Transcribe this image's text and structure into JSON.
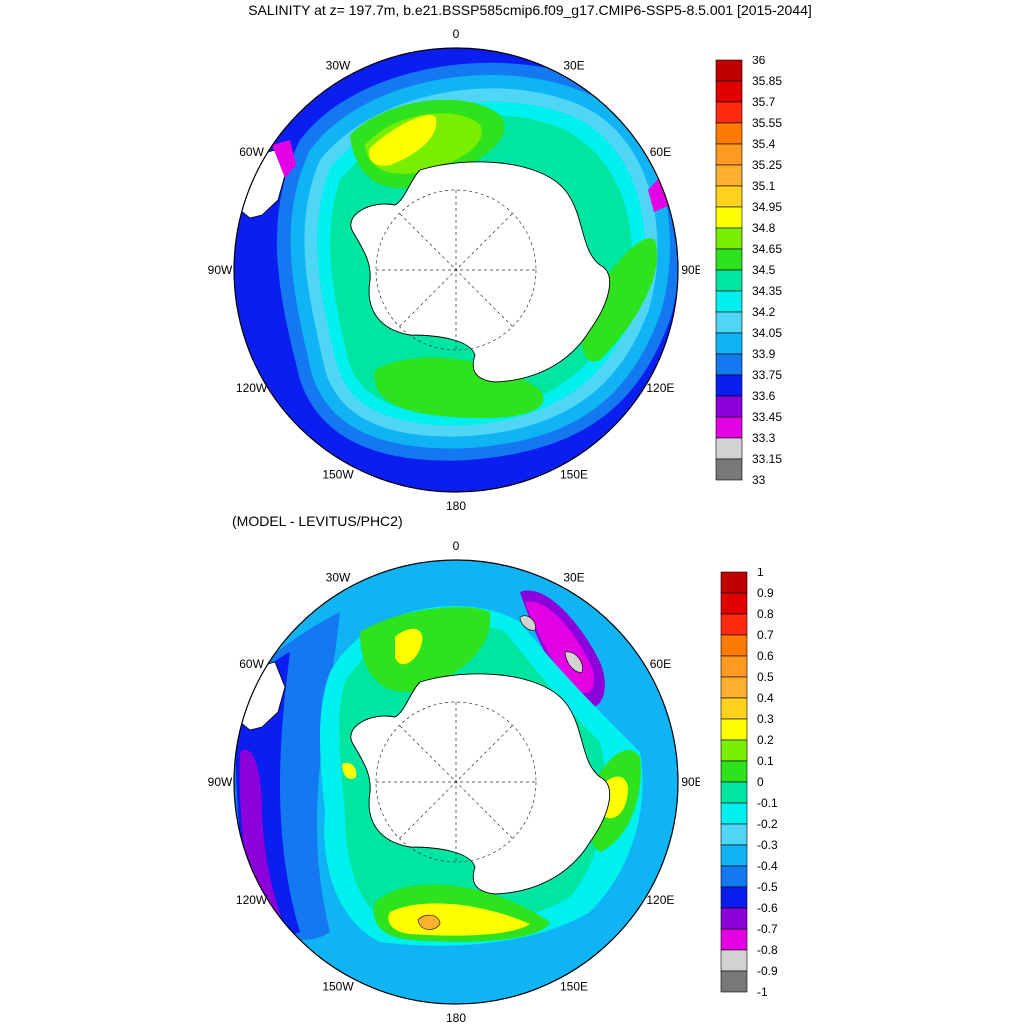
{
  "title": "SALINITY at z= 197.7m, b.e21.BSSP585cmip6.f09_g17.CMIP6-SSP5-8.5.001 [2015-2044]",
  "subtitle": "(MODEL - LEVITUS/PHC2)",
  "longitude_labels": [
    "0",
    "30E",
    "60E",
    "90E",
    "120E",
    "150E",
    "180",
    "150W",
    "120W",
    "90W",
    "60W",
    "30W"
  ],
  "colors": {
    "ocean_deep_blue": "#0a1ef0",
    "land": "#ffffff",
    "coast": "#000000"
  },
  "top_colorbar": {
    "labels": [
      "36",
      "35.85",
      "35.7",
      "35.55",
      "35.4",
      "35.25",
      "35.1",
      "34.95",
      "34.8",
      "34.65",
      "34.5",
      "34.35",
      "34.2",
      "34.05",
      "33.9",
      "33.75",
      "33.6",
      "33.45",
      "33.3",
      "33.15",
      "33"
    ],
    "colors": [
      "#c00000",
      "#e00000",
      "#ff2a10",
      "#ff7a00",
      "#ff9a20",
      "#ffb030",
      "#ffd21e",
      "#ffff00",
      "#78ee00",
      "#2ee21e",
      "#00e6a0",
      "#00f0f0",
      "#50d6f5",
      "#10b4f5",
      "#1478f0",
      "#0a1ef0",
      "#8c00dc",
      "#e400e4",
      "#d2d2d2",
      "#787878"
    ]
  },
  "bottom_colorbar": {
    "labels": [
      "1",
      "0.9",
      "0.8",
      "0.7",
      "0.6",
      "0.5",
      "0.4",
      "0.3",
      "0.2",
      "0.1",
      "0",
      "-0.1",
      "-0.2",
      "-0.3",
      "-0.4",
      "-0.5",
      "-0.6",
      "-0.7",
      "-0.8",
      "-0.9",
      "-1"
    ],
    "colors": [
      "#c00000",
      "#e00000",
      "#ff2a10",
      "#ff7a00",
      "#ff9a20",
      "#ffb030",
      "#ffd21e",
      "#ffff00",
      "#78ee00",
      "#2ee21e",
      "#00e6a0",
      "#00f0f0",
      "#50d6f5",
      "#10b4f5",
      "#1478f0",
      "#0a1ef0",
      "#8c00dc",
      "#e400e4",
      "#d2d2d2",
      "#787878"
    ]
  }
}
